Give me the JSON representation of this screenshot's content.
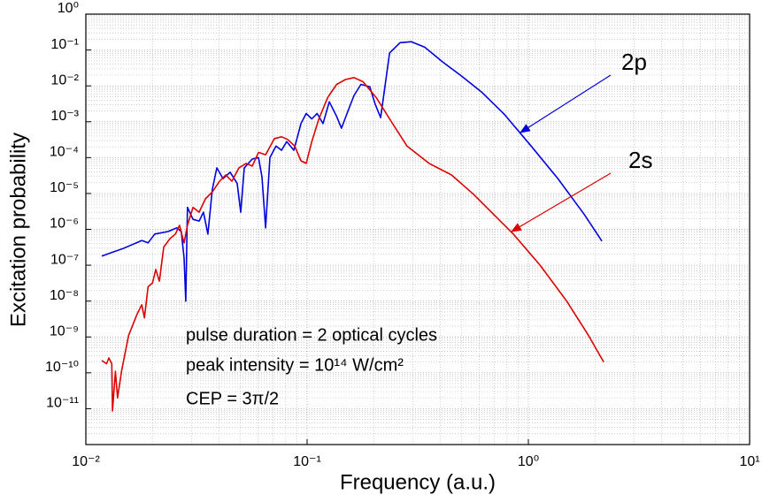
{
  "chart_data": {
    "type": "line",
    "x_label": "Frequency (a.u.)",
    "y_label": "Excitation probability",
    "xscale": "log",
    "yscale": "log",
    "grid": true,
    "xlim": [
      0.01,
      10
    ],
    "ylim": [
      1e-12,
      1
    ],
    "xticks": [
      {
        "value": 0.01,
        "label": "10⁻²"
      },
      {
        "value": 0.1,
        "label": "10⁻¹"
      },
      {
        "value": 1,
        "label": "10⁰"
      },
      {
        "value": 10,
        "label": "10¹"
      }
    ],
    "yticks": [
      {
        "value": 1,
        "label": "10⁰"
      },
      {
        "value": 0.1,
        "label": "10⁻¹"
      },
      {
        "value": 0.01,
        "label": "10⁻²"
      },
      {
        "value": 0.001,
        "label": "10⁻³"
      },
      {
        "value": 0.0001,
        "label": "10⁻⁴"
      },
      {
        "value": 1e-05,
        "label": "10⁻⁵"
      },
      {
        "value": 1e-06,
        "label": "10⁻⁶"
      },
      {
        "value": 1e-07,
        "label": "10⁻⁷"
      },
      {
        "value": 1e-08,
        "label": "10⁻⁸"
      },
      {
        "value": 1e-09,
        "label": "10⁻⁹"
      },
      {
        "value": 1e-10,
        "label": "10⁻¹⁰"
      },
      {
        "value": 1e-11,
        "label": "10⁻¹¹"
      }
    ],
    "annotations": [
      "pulse duration = 2 optical cycles",
      "peak intensity = 10¹⁴ W/cm²",
      "CEP = 3π/2"
    ],
    "series": [
      {
        "name": "2p",
        "color": "#0000dd",
        "x": [
          0.0118,
          0.0149,
          0.0179,
          0.0191,
          0.0205,
          0.0235,
          0.0258,
          0.027,
          0.0278,
          0.0283,
          0.0288,
          0.0305,
          0.0325,
          0.034,
          0.0356,
          0.0373,
          0.0391,
          0.0417,
          0.0449,
          0.0483,
          0.0501,
          0.052,
          0.0565,
          0.0603,
          0.0625,
          0.0649,
          0.0679,
          0.0724,
          0.0766,
          0.0809,
          0.0871,
          0.0938,
          0.0991,
          0.105,
          0.111,
          0.118,
          0.126,
          0.136,
          0.143,
          0.151,
          0.163,
          0.175,
          0.192,
          0.203,
          0.215,
          0.236,
          0.263,
          0.296,
          0.34,
          0.409,
          0.492,
          0.619,
          0.78,
          1.03,
          1.36,
          1.79,
          2.15
        ],
        "values": [
          1.8e-07,
          3e-07,
          4.9e-07,
          4.2e-07,
          7.4e-07,
          8.7e-07,
          1.1e-06,
          8.7e-07,
          1.6e-07,
          1e-08,
          4.1e-06,
          1.9e-06,
          1.7e-06,
          3e-06,
          7.4e-07,
          1.3e-05,
          5.2e-05,
          2.6e-05,
          3.9e-05,
          1.9e-05,
          3e-06,
          5.2e-05,
          9.1e-05,
          0.0001,
          2.9e-05,
          1.1e-06,
          0.0001,
          0.00021,
          0.00016,
          0.00028,
          0.00016,
          0.00089,
          0.0017,
          0.0012,
          0.0017,
          0.00089,
          0.0036,
          0.0014,
          0.00066,
          0.0016,
          0.0054,
          0.011,
          0.0095,
          0.0031,
          0.0013,
          0.083,
          0.16,
          0.17,
          0.12,
          0.047,
          0.02,
          0.0065,
          0.0016,
          0.00021,
          2.6e-05,
          2.6e-06,
          4.7e-07
        ]
      },
      {
        "name": "2s",
        "color": "#dd0000",
        "x": [
          0.0118,
          0.0124,
          0.0127,
          0.0131,
          0.0132,
          0.0136,
          0.0139,
          0.0145,
          0.0156,
          0.0171,
          0.0179,
          0.0184,
          0.0191,
          0.02,
          0.0207,
          0.0215,
          0.0225,
          0.024,
          0.0254,
          0.0265,
          0.0278,
          0.0288,
          0.0305,
          0.0325,
          0.0347,
          0.0373,
          0.0402,
          0.0429,
          0.0457,
          0.0492,
          0.053,
          0.0565,
          0.0603,
          0.0649,
          0.0712,
          0.0766,
          0.0817,
          0.0879,
          0.0938,
          0.0991,
          0.105,
          0.113,
          0.124,
          0.136,
          0.149,
          0.163,
          0.179,
          0.205,
          0.236,
          0.283,
          0.356,
          0.449,
          0.565,
          0.711,
          0.855,
          1.13,
          1.49,
          1.87,
          2.19
        ],
        "values": [
          2.2e-10,
          1.8e-10,
          2.6e-10,
          1.8e-10,
          8.7e-12,
          1.1e-10,
          2e-11,
          1.1e-10,
          1.1e-09,
          4.5e-09,
          7.9e-09,
          3.4e-09,
          2.5e-08,
          3.2e-08,
          7.6e-08,
          3.6e-08,
          3.2e-07,
          5.5e-07,
          7.4e-07,
          1.3e-06,
          4.2e-07,
          1.3e-06,
          4.1e-06,
          3e-06,
          7.1e-06,
          1.1e-05,
          2.2e-05,
          3.3e-05,
          2.2e-05,
          5.2e-05,
          6.9e-05,
          5.8e-05,
          0.00014,
          0.00012,
          0.00034,
          0.00038,
          0.00032,
          0.00021,
          8.1e-05,
          6.9e-05,
          0.00028,
          0.0012,
          0.0048,
          0.011,
          0.015,
          0.017,
          0.013,
          0.0048,
          0.0012,
          0.00021,
          6.9e-05,
          3.3e-05,
          9.5e-06,
          2.3e-06,
          7.4e-07,
          1e-07,
          1e-08,
          1.1e-09,
          2e-10
        ]
      }
    ]
  }
}
